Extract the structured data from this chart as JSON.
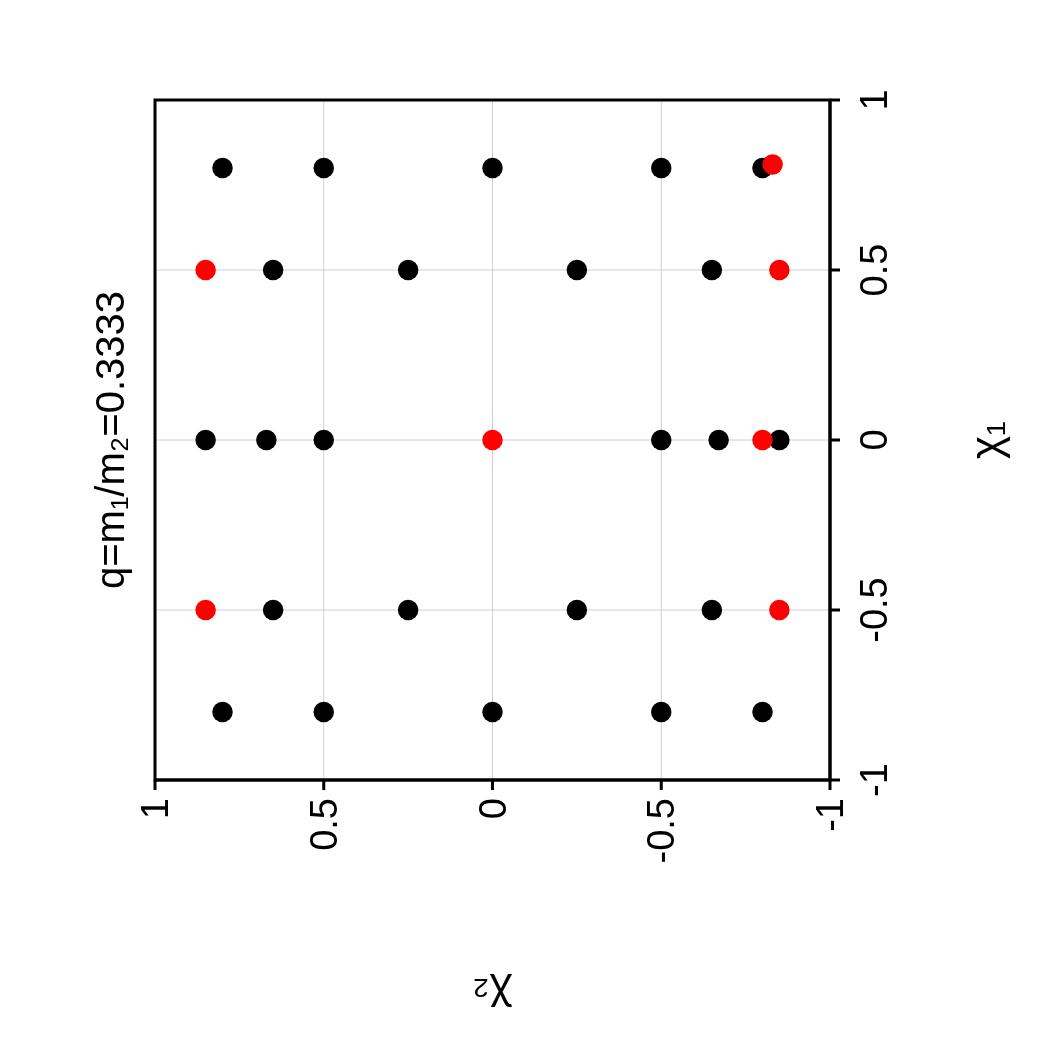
{
  "chart_data": {
    "type": "scatter",
    "title": "q=m₁/m₂=0.3333",
    "xlabel": "χ₂",
    "ylabel": "χ₁",
    "xlim": [
      1,
      -1
    ],
    "xticks": [
      1,
      0.5,
      0,
      -0.5,
      -1
    ],
    "ylim": [
      -1,
      1
    ],
    "yticks": [
      -1,
      -0.5,
      0,
      0.5,
      1
    ],
    "grid": true,
    "legend": false,
    "marker": "circle",
    "series": [
      {
        "color": "#000000",
        "values": [
          0.8,
          0.8,
          0.8,
          0.8,
          0.8,
          0.5,
          0.5,
          0.5,
          0.5,
          0,
          0,
          0,
          0,
          0,
          0,
          -0.5,
          -0.5,
          -0.5,
          -0.5,
          -0.8,
          -0.8,
          -0.8,
          -0.8,
          -0.8
        ],
        "x": [
          0.8,
          0.5,
          0,
          -0.5,
          -0.8,
          0.65,
          0.25,
          -0.25,
          -0.65,
          0.85,
          0.67,
          0.5,
          -0.5,
          -0.67,
          -0.85,
          0.65,
          0.25,
          -0.25,
          -0.65,
          0.8,
          0.5,
          0,
          -0.5,
          -0.8
        ]
      },
      {
        "color": "#ff0000",
        "values": [
          0.5,
          0.5,
          0,
          0,
          -0.5,
          -0.5,
          0.81
        ],
        "x": [
          0.85,
          -0.85,
          0,
          -0.8,
          0.85,
          -0.85,
          -0.83
        ]
      }
    ]
  }
}
